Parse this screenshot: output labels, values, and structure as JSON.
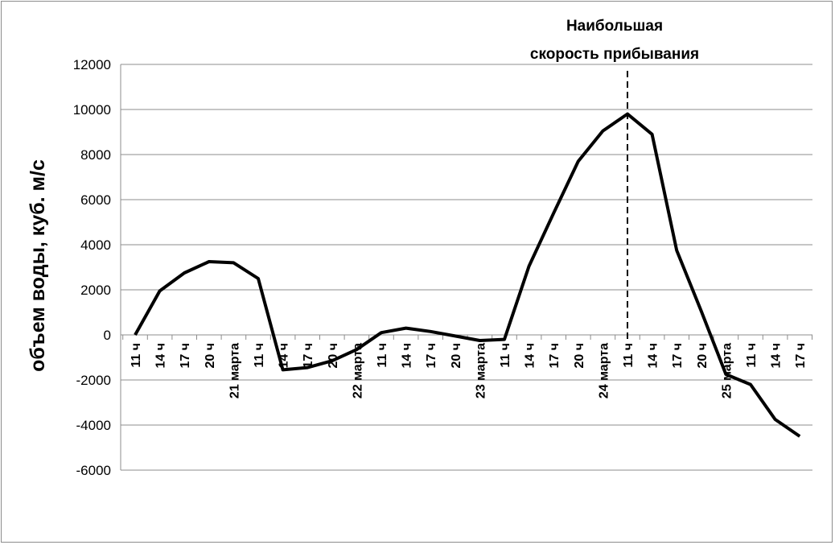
{
  "chart_data": {
    "type": "line",
    "title": "",
    "xlabel": "",
    "ylabel": "объем воды, куб. м/с",
    "ylim": [
      -6000,
      12000
    ],
    "yticks": [
      -6000,
      -4000,
      -2000,
      0,
      2000,
      4000,
      6000,
      8000,
      10000,
      12000
    ],
    "grid": "horizontal",
    "legend": "none",
    "x_tick_labels": [
      "11 ч",
      "14 ч",
      "17 ч",
      "20 ч",
      "21 марта",
      "11 ч",
      "14 ч",
      "17 ч",
      "20 ч",
      "22 марта",
      "11 ч",
      "14 ч",
      "17 ч",
      "20 ч",
      "23 марта",
      "11 ч",
      "14 ч",
      "17 ч",
      "20 ч",
      "24 марта",
      "11 ч",
      "14 ч",
      "17 ч",
      "20 ч",
      "25 марта",
      "11 ч",
      "14 ч",
      "17 ч"
    ],
    "series": [
      {
        "color": "#000000",
        "values": [
          0,
          1950,
          2750,
          3250,
          3200,
          2500,
          -1550,
          -1450,
          -1150,
          -650,
          100,
          300,
          150,
          -50,
          -250,
          -200,
          3050,
          5400,
          7700,
          9050,
          9800,
          8900,
          3750,
          1050,
          -1750,
          -2200,
          -3750,
          -4500
        ]
      }
    ],
    "annotation": {
      "text_line1": "Наибольшая",
      "text_line2": "скорость прибывания",
      "at_index": 20,
      "line_style": "dashed"
    }
  }
}
